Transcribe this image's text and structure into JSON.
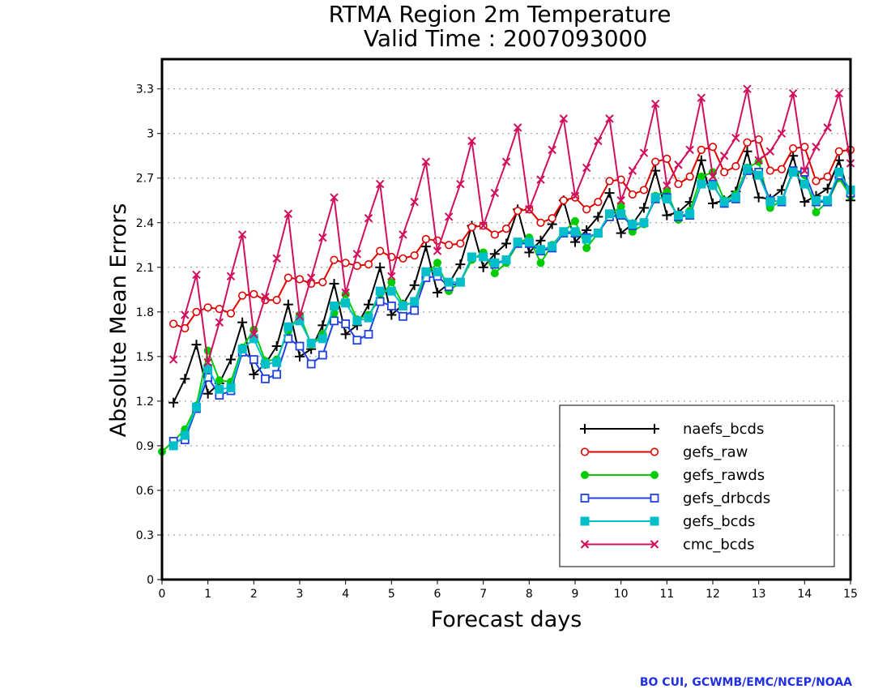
{
  "chart_data": {
    "type": "line",
    "title": "RTMA Region 2m Temperature",
    "subtitle": "Valid Time : 2007093000",
    "xlabel": "Forecast days",
    "ylabel": "Absolute Mean Errors",
    "xlim": [
      0,
      15
    ],
    "ylim": [
      0,
      3.5
    ],
    "xticks": [
      "0",
      "1",
      "2",
      "3",
      "4",
      "5",
      "6",
      "7",
      "8",
      "9",
      "10",
      "11",
      "12",
      "13",
      "14",
      "15"
    ],
    "yticks": [
      "0",
      "0.3",
      "0.6",
      "0.9",
      "1.2",
      "1.5",
      "1.8",
      "2.1",
      "2.4",
      "2.7",
      "3",
      "3.3"
    ],
    "grid": true,
    "legend_position": "bottom-right",
    "x": [
      0.0,
      0.25,
      0.5,
      0.75,
      1.0,
      1.25,
      1.5,
      1.75,
      2.0,
      2.25,
      2.5,
      2.75,
      3.0,
      3.25,
      3.5,
      3.75,
      4.0,
      4.25,
      4.5,
      4.75,
      5.0,
      5.25,
      5.5,
      5.75,
      6.0,
      6.25,
      6.5,
      6.75,
      7.0,
      7.25,
      7.5,
      7.75,
      8.0,
      8.25,
      8.5,
      8.75,
      9.0,
      9.25,
      9.5,
      9.75,
      10.0,
      10.25,
      10.5,
      10.75,
      11.0,
      11.25,
      11.5,
      11.75,
      12.0,
      12.25,
      12.5,
      12.75,
      13.0,
      13.25,
      13.5,
      13.75,
      14.0,
      14.25,
      14.5,
      14.75,
      15.0
    ],
    "series": [
      {
        "name": "naefs_bcds",
        "color": "#000000",
        "marker": "plus",
        "values": [
          null,
          1.19,
          1.35,
          1.58,
          1.25,
          1.32,
          1.48,
          1.73,
          1.38,
          1.45,
          1.57,
          1.85,
          1.5,
          1.55,
          1.71,
          1.99,
          1.65,
          1.71,
          1.85,
          2.1,
          1.78,
          1.85,
          1.98,
          2.24,
          1.93,
          1.99,
          2.12,
          2.38,
          2.1,
          2.19,
          2.26,
          2.49,
          2.2,
          2.28,
          2.39,
          2.55,
          2.27,
          2.35,
          2.44,
          2.6,
          2.33,
          2.39,
          2.5,
          2.75,
          2.45,
          2.47,
          2.54,
          2.82,
          2.53,
          2.55,
          2.61,
          2.88,
          2.57,
          2.56,
          2.62,
          2.85,
          2.54,
          2.58,
          2.63,
          2.82,
          2.55
        ]
      },
      {
        "name": "gefs_raw",
        "color": "#e00000",
        "marker": "circle",
        "values": [
          null,
          1.72,
          1.69,
          1.8,
          1.83,
          1.82,
          1.79,
          1.91,
          1.92,
          1.88,
          1.88,
          2.03,
          2.02,
          1.99,
          2.0,
          2.15,
          2.13,
          2.11,
          2.12,
          2.21,
          2.17,
          2.16,
          2.18,
          2.29,
          2.28,
          2.25,
          2.26,
          2.37,
          2.38,
          2.32,
          2.36,
          2.48,
          2.49,
          2.4,
          2.43,
          2.55,
          2.57,
          2.49,
          2.54,
          2.68,
          2.69,
          2.59,
          2.62,
          2.81,
          2.83,
          2.66,
          2.71,
          2.89,
          2.91,
          2.74,
          2.78,
          2.94,
          2.96,
          2.75,
          2.76,
          2.9,
          2.91,
          2.68,
          2.71,
          2.88,
          2.89
        ]
      },
      {
        "name": "gefs_rawds",
        "color": "#00cc00",
        "marker": "filled-circle",
        "values": [
          0.86,
          0.93,
          1.01,
          1.17,
          1.54,
          1.34,
          1.33,
          1.56,
          1.68,
          1.47,
          1.48,
          1.67,
          1.78,
          1.58,
          1.65,
          1.79,
          1.92,
          1.75,
          1.78,
          1.89,
          2.0,
          1.85,
          1.86,
          2.05,
          2.13,
          1.94,
          2.0,
          2.15,
          2.2,
          2.06,
          2.13,
          2.26,
          2.3,
          2.13,
          2.25,
          2.34,
          2.41,
          2.23,
          2.33,
          2.45,
          2.51,
          2.34,
          2.39,
          2.58,
          2.61,
          2.42,
          2.48,
          2.71,
          2.74,
          2.55,
          2.59,
          2.77,
          2.81,
          2.5,
          2.55,
          2.75,
          2.72,
          2.47,
          2.54,
          2.7,
          2.58
        ]
      },
      {
        "name": "gefs_drbcds",
        "color": "#2040e0",
        "marker": "square",
        "values": [
          null,
          0.93,
          0.94,
          1.15,
          1.36,
          1.24,
          1.27,
          1.53,
          1.48,
          1.35,
          1.38,
          1.62,
          1.57,
          1.45,
          1.51,
          1.74,
          1.72,
          1.61,
          1.65,
          1.87,
          1.84,
          1.77,
          1.81,
          2.03,
          2.04,
          1.97,
          2.0,
          2.17,
          2.17,
          2.12,
          2.15,
          2.26,
          2.26,
          2.21,
          2.23,
          2.33,
          2.33,
          2.3,
          2.33,
          2.44,
          2.45,
          2.38,
          2.4,
          2.56,
          2.57,
          2.44,
          2.45,
          2.66,
          2.66,
          2.53,
          2.56,
          2.75,
          2.74,
          2.55,
          2.54,
          2.75,
          2.74,
          2.54,
          2.54,
          2.72,
          2.6
        ]
      },
      {
        "name": "gefs_bcds",
        "color": "#00bfc8",
        "marker": "filled-square",
        "values": [
          null,
          0.9,
          0.97,
          1.16,
          1.42,
          1.28,
          1.29,
          1.55,
          1.62,
          1.45,
          1.46,
          1.7,
          1.74,
          1.59,
          1.62,
          1.84,
          1.86,
          1.74,
          1.76,
          1.94,
          1.94,
          1.84,
          1.87,
          2.07,
          2.07,
          2.0,
          2.0,
          2.17,
          2.17,
          2.13,
          2.15,
          2.27,
          2.27,
          2.22,
          2.24,
          2.34,
          2.34,
          2.29,
          2.33,
          2.46,
          2.46,
          2.39,
          2.4,
          2.57,
          2.56,
          2.45,
          2.46,
          2.66,
          2.65,
          2.54,
          2.57,
          2.76,
          2.72,
          2.54,
          2.55,
          2.74,
          2.66,
          2.55,
          2.55,
          2.74,
          2.62
        ]
      },
      {
        "name": "cmc_bcds",
        "color": "#d0105e",
        "marker": "x",
        "values": [
          null,
          1.48,
          1.78,
          2.05,
          1.46,
          1.73,
          2.04,
          2.32,
          1.65,
          1.9,
          2.16,
          2.46,
          1.77,
          2.03,
          2.3,
          2.57,
          1.93,
          2.19,
          2.43,
          2.66,
          2.04,
          2.32,
          2.54,
          2.81,
          2.21,
          2.44,
          2.66,
          2.95,
          2.38,
          2.6,
          2.81,
          3.04,
          2.49,
          2.69,
          2.89,
          3.1,
          2.58,
          2.77,
          2.95,
          3.1,
          2.55,
          2.75,
          2.87,
          3.2,
          2.65,
          2.79,
          2.89,
          3.24,
          2.71,
          2.85,
          2.97,
          3.3,
          2.82,
          2.88,
          3.0,
          3.27,
          2.75,
          2.91,
          3.04,
          3.27,
          2.8
        ]
      }
    ]
  },
  "credit": "BO CUI, GCWMB/EMC/NCEP/NOAA",
  "credit_color": "#2030e0"
}
